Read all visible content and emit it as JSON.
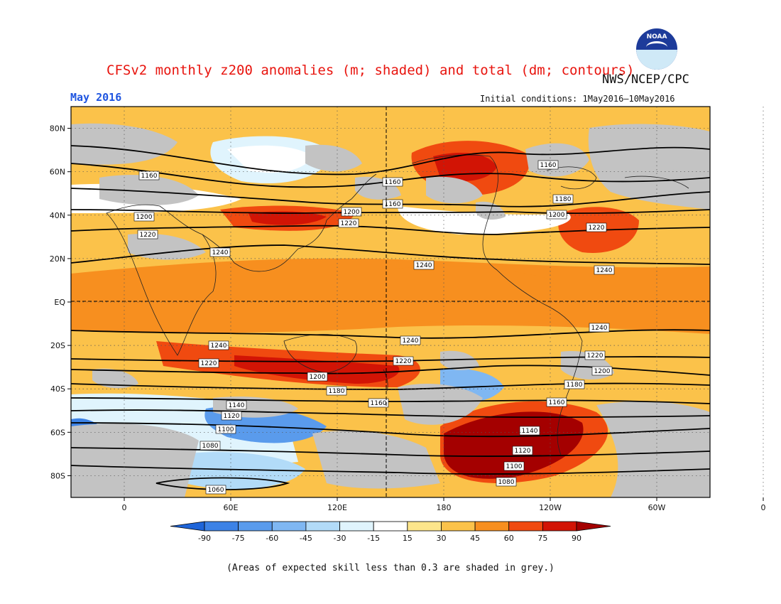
{
  "title": "CFSv2 monthly z200 anomalies (m; shaded) and total (dm; contours)",
  "agency": "NWS/NCEP/CPC",
  "logo_text": "NOAA",
  "month": "May 2016",
  "initial_conditions": "Initial conditions: 1May2016–10May2016",
  "footnote": "(Areas of expected skill less than 0.3 are shaded in grey.)",
  "lat_labels": [
    "80N",
    "60N",
    "40N",
    "20N",
    "EQ",
    "20S",
    "40S",
    "60S",
    "80S"
  ],
  "lon_labels": [
    "0",
    "60E",
    "120E",
    "180",
    "120W",
    "60W",
    "0"
  ],
  "colorbar": {
    "ticks": [
      "-90",
      "-75",
      "-60",
      "-45",
      "-30",
      "-15",
      "15",
      "30",
      "45",
      "60",
      "75",
      "90"
    ],
    "colors": [
      "#1e64d8",
      "#3c82e6",
      "#5a9bec",
      "#7fb7f2",
      "#b2dbf8",
      "#e0f4fd",
      "#ffffff",
      "#fde58b",
      "#fbc24a",
      "#f78f1f",
      "#f04a10",
      "#d21405",
      "#a40000"
    ]
  },
  "colors": {
    "grey_mask": "#c3c3c3",
    "contour": "#000000"
  },
  "contour_labels": [
    "1160",
    "1200",
    "1220",
    "1240",
    "1160",
    "1160",
    "1200",
    "1220",
    "1160",
    "1180",
    "1200",
    "1220",
    "1240",
    "1240",
    "1240",
    "1240",
    "1220",
    "1200",
    "1180",
    "1160",
    "1140",
    "1120",
    "1100",
    "1080",
    "1060",
    "1240",
    "1220",
    "1220",
    "1200",
    "1180",
    "1160",
    "1140",
    "1120",
    "1100",
    "1080"
  ]
}
